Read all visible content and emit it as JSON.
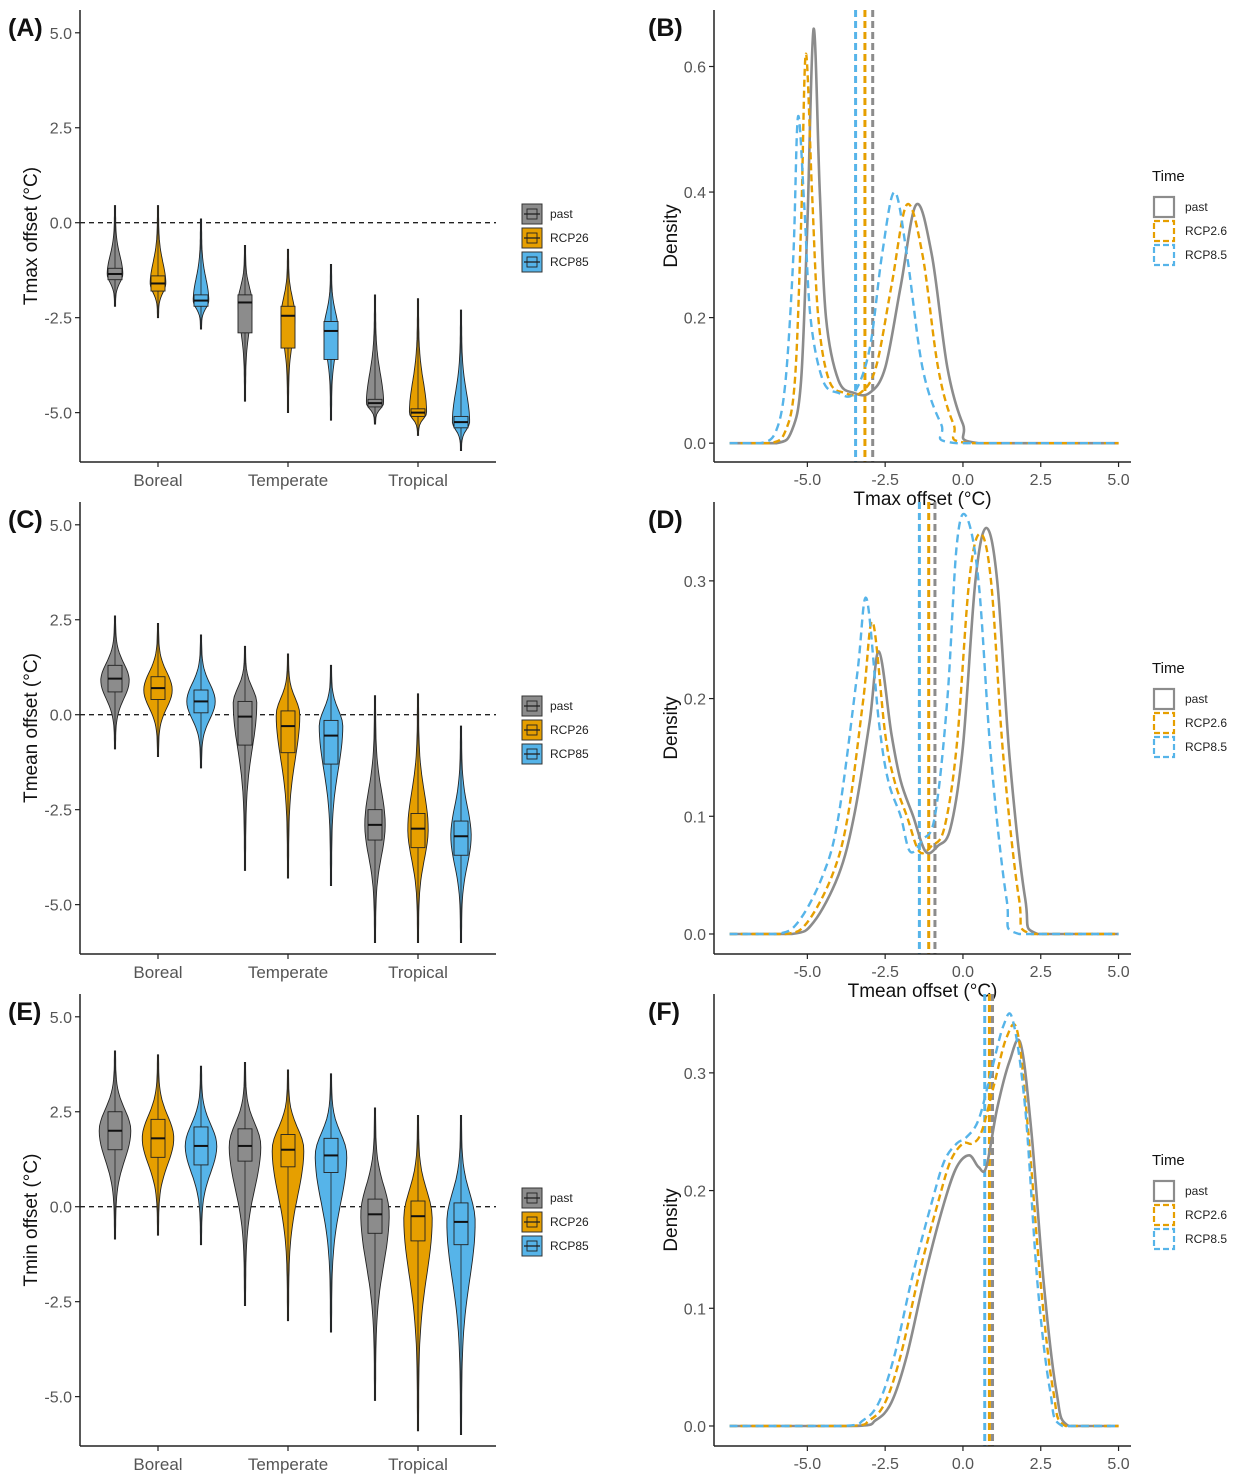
{
  "colors": {
    "past": "#8c8c8c",
    "rcp26": "#e69f00",
    "rcp85": "#56b4e9",
    "axis": "#222222"
  },
  "chart_data": [
    {
      "panel": "(A)",
      "type": "violin",
      "ylabel": "Tmax offset (°C)",
      "categories": [
        "Boreal",
        "Temperate",
        "Tropical"
      ],
      "ylim": [
        -6.3,
        5.6
      ],
      "yticks": [
        -5.0,
        -2.5,
        0.0,
        2.5,
        5.0
      ],
      "yticklabels": [
        "-5.0",
        "-2.5",
        "0.0",
        "2.5",
        "5.0"
      ],
      "reference_line": 0,
      "legend": [
        "past",
        "RCP26",
        "RCP85"
      ],
      "series": [
        {
          "category": "Boreal",
          "group": "past",
          "median": -1.35,
          "q1": -1.5,
          "q3": -1.2,
          "min": -2.2,
          "max": 0.45,
          "width": 0.45,
          "bulge": -1.35
        },
        {
          "category": "Boreal",
          "group": "RCP26",
          "median": -1.6,
          "q1": -1.8,
          "q3": -1.4,
          "min": -2.5,
          "max": 0.45,
          "width": 0.45,
          "bulge": -1.6
        },
        {
          "category": "Boreal",
          "group": "RCP85",
          "median": -2.05,
          "q1": -2.2,
          "q3": -1.9,
          "min": -2.8,
          "max": 0.1,
          "width": 0.45,
          "bulge": -2.05
        },
        {
          "category": "Temperate",
          "group": "past",
          "median": -2.1,
          "q1": -2.9,
          "q3": -1.9,
          "min": -4.7,
          "max": -0.6,
          "width": 0.4,
          "bulge": -2.1
        },
        {
          "category": "Temperate",
          "group": "RCP26",
          "median": -2.45,
          "q1": -3.3,
          "q3": -2.2,
          "min": -5.0,
          "max": -0.7,
          "width": 0.4,
          "bulge": -2.45
        },
        {
          "category": "Temperate",
          "group": "RCP85",
          "median": -2.85,
          "q1": -3.6,
          "q3": -2.6,
          "min": -5.2,
          "max": -1.1,
          "width": 0.4,
          "bulge": -2.8
        },
        {
          "category": "Tropical",
          "group": "past",
          "median": -4.75,
          "q1": -4.85,
          "q3": -4.65,
          "min": -5.3,
          "max": -1.9,
          "width": 0.5,
          "bulge": -4.75
        },
        {
          "category": "Tropical",
          "group": "RCP26",
          "median": -5.0,
          "q1": -5.1,
          "q3": -4.9,
          "min": -5.6,
          "max": -2.0,
          "width": 0.5,
          "bulge": -5.0
        },
        {
          "category": "Tropical",
          "group": "RCP85",
          "median": -5.25,
          "q1": -5.4,
          "q3": -5.1,
          "min": -6.0,
          "max": -2.3,
          "width": 0.5,
          "bulge": -5.25
        }
      ]
    },
    {
      "panel": "(B)",
      "type": "line",
      "xlabel": "Tmax offset (°C)",
      "ylabel": "Density",
      "xlim": [
        -8.0,
        5.4
      ],
      "ylim": [
        -0.03,
        0.69
      ],
      "xticks": [
        -5.0,
        -2.5,
        0.0,
        2.5,
        5.0
      ],
      "xticklabels": [
        "-5.0",
        "-2.5",
        "0.0",
        "2.5",
        "5.0"
      ],
      "yticks": [
        0.0,
        0.2,
        0.4,
        0.6
      ],
      "yticklabels": [
        "0.0",
        "0.2",
        "0.4",
        "0.6"
      ],
      "legend_title": "Time",
      "legend": [
        "past",
        "RCP2.6",
        "RCP8.5"
      ],
      "series": [
        {
          "name": "past",
          "x": [
            -7.5,
            -6.0,
            -5.5,
            -5.2,
            -5.0,
            -4.8,
            -4.6,
            -4.4,
            -4.0,
            -3.5,
            -3.0,
            -2.5,
            -2.0,
            -1.5,
            -1.0,
            -0.5,
            0.0,
            0.5,
            5.0
          ],
          "y": [
            0,
            0,
            0.02,
            0.1,
            0.35,
            0.66,
            0.4,
            0.2,
            0.1,
            0.08,
            0.08,
            0.12,
            0.25,
            0.38,
            0.3,
            0.12,
            0.03,
            0.0,
            0
          ],
          "mean": -2.9
        },
        {
          "name": "RCP2.6",
          "x": [
            -7.5,
            -6.2,
            -5.7,
            -5.4,
            -5.2,
            -5.05,
            -4.85,
            -4.65,
            -4.3,
            -3.8,
            -3.3,
            -2.8,
            -2.3,
            -1.8,
            -1.3,
            -0.8,
            -0.3,
            0.2,
            5.0
          ],
          "y": [
            0,
            0,
            0.02,
            0.1,
            0.35,
            0.62,
            0.4,
            0.2,
            0.1,
            0.08,
            0.08,
            0.12,
            0.25,
            0.38,
            0.3,
            0.12,
            0.03,
            0.0,
            0
          ],
          "mean": -3.15
        },
        {
          "name": "RCP8.5",
          "x": [
            -7.5,
            -6.5,
            -6.0,
            -5.7,
            -5.45,
            -5.3,
            -5.1,
            -4.9,
            -4.5,
            -4.0,
            -3.5,
            -3.0,
            -2.6,
            -2.2,
            -1.8,
            -1.3,
            -0.7,
            -0.2,
            5.0
          ],
          "y": [
            0,
            0,
            0.02,
            0.1,
            0.3,
            0.52,
            0.38,
            0.2,
            0.1,
            0.08,
            0.08,
            0.15,
            0.3,
            0.4,
            0.3,
            0.12,
            0.03,
            0.0,
            0
          ],
          "mean": -3.45
        }
      ]
    },
    {
      "panel": "(C)",
      "type": "violin",
      "ylabel": "Tmean offset (°C)",
      "categories": [
        "Boreal",
        "Temperate",
        "Tropical"
      ],
      "ylim": [
        -6.3,
        5.6
      ],
      "yticks": [
        -5.0,
        -2.5,
        0.0,
        2.5,
        5.0
      ],
      "yticklabels": [
        "-5.0",
        "-2.5",
        "0.0",
        "2.5",
        "5.0"
      ],
      "reference_line": 0,
      "legend": [
        "past",
        "RCP26",
        "RCP85"
      ],
      "series": [
        {
          "category": "Boreal",
          "group": "past",
          "median": 0.95,
          "q1": 0.6,
          "q3": 1.3,
          "min": -0.9,
          "max": 2.6,
          "width": 0.85,
          "bulge": 0.9
        },
        {
          "category": "Boreal",
          "group": "RCP26",
          "median": 0.7,
          "q1": 0.4,
          "q3": 1.0,
          "min": -1.1,
          "max": 2.4,
          "width": 0.85,
          "bulge": 0.65
        },
        {
          "category": "Boreal",
          "group": "RCP85",
          "median": 0.35,
          "q1": 0.05,
          "q3": 0.65,
          "min": -1.4,
          "max": 2.1,
          "width": 0.85,
          "bulge": 0.35
        },
        {
          "category": "Temperate",
          "group": "past",
          "median": -0.05,
          "q1": -0.8,
          "q3": 0.35,
          "min": -4.1,
          "max": 1.8,
          "width": 0.7,
          "bulge": 0.3
        },
        {
          "category": "Temperate",
          "group": "RCP26",
          "median": -0.3,
          "q1": -1.0,
          "q3": 0.1,
          "min": -4.3,
          "max": 1.6,
          "width": 0.7,
          "bulge": 0.0
        },
        {
          "category": "Temperate",
          "group": "RCP85",
          "median": -0.55,
          "q1": -1.3,
          "q3": -0.15,
          "min": -4.5,
          "max": 1.3,
          "width": 0.7,
          "bulge": -0.3
        },
        {
          "category": "Tropical",
          "group": "past",
          "median": -2.9,
          "q1": -3.3,
          "q3": -2.5,
          "min": -6.0,
          "max": 0.5,
          "width": 0.6,
          "bulge": -2.9
        },
        {
          "category": "Tropical",
          "group": "RCP26",
          "median": -3.0,
          "q1": -3.5,
          "q3": -2.6,
          "min": -6.0,
          "max": 0.55,
          "width": 0.6,
          "bulge": -3.0
        },
        {
          "category": "Tropical",
          "group": "RCP85",
          "median": -3.2,
          "q1": -3.7,
          "q3": -2.8,
          "min": -6.0,
          "max": -0.3,
          "width": 0.6,
          "bulge": -3.2
        }
      ]
    },
    {
      "panel": "(D)",
      "type": "line",
      "xlabel": "Tmean offset (°C)",
      "ylabel": "Density",
      "xlim": [
        -8.0,
        5.4
      ],
      "ylim": [
        -0.017,
        0.367
      ],
      "xticks": [
        -5.0,
        -2.5,
        0.0,
        2.5,
        5.0
      ],
      "xticklabels": [
        "-5.0",
        "-2.5",
        "0.0",
        "2.5",
        "5.0"
      ],
      "yticks": [
        0.0,
        0.1,
        0.2,
        0.3
      ],
      "yticklabels": [
        "0.0",
        "0.1",
        "0.2",
        "0.3"
      ],
      "legend_title": "Time",
      "legend": [
        "past",
        "RCP2.6",
        "RCP8.5"
      ],
      "series": [
        {
          "name": "past",
          "x": [
            -7.5,
            -5.5,
            -4.8,
            -4.0,
            -3.5,
            -3.0,
            -2.7,
            -2.3,
            -2.0,
            -1.6,
            -1.2,
            -0.8,
            -0.4,
            0.0,
            0.4,
            0.75,
            1.1,
            1.5,
            2.0,
            2.4,
            5.0
          ],
          "y": [
            0,
            0,
            0.01,
            0.05,
            0.1,
            0.18,
            0.24,
            0.17,
            0.13,
            0.1,
            0.07,
            0.075,
            0.09,
            0.16,
            0.3,
            0.345,
            0.3,
            0.15,
            0.03,
            0.0,
            0
          ],
          "mean": -0.9
        },
        {
          "name": "RCP2.6",
          "x": [
            -7.5,
            -5.7,
            -5.0,
            -4.2,
            -3.7,
            -3.2,
            -2.9,
            -2.5,
            -2.2,
            -1.8,
            -1.4,
            -1.0,
            -0.6,
            -0.2,
            0.2,
            0.55,
            0.9,
            1.3,
            1.8,
            2.2,
            5.0
          ],
          "y": [
            0,
            0,
            0.01,
            0.05,
            0.1,
            0.2,
            0.265,
            0.17,
            0.13,
            0.1,
            0.07,
            0.075,
            0.09,
            0.16,
            0.3,
            0.34,
            0.3,
            0.15,
            0.03,
            0.0,
            0
          ],
          "mean": -1.1
        },
        {
          "name": "RCP8.5",
          "x": [
            -7.5,
            -6.0,
            -5.3,
            -4.5,
            -4.0,
            -3.4,
            -3.1,
            -2.7,
            -2.4,
            -2.0,
            -1.7,
            -1.3,
            -0.9,
            -0.5,
            -0.2,
            0.1,
            0.5,
            0.9,
            1.4,
            1.8,
            5.0
          ],
          "y": [
            0,
            0,
            0.01,
            0.05,
            0.1,
            0.22,
            0.285,
            0.18,
            0.13,
            0.1,
            0.07,
            0.08,
            0.1,
            0.2,
            0.33,
            0.355,
            0.3,
            0.15,
            0.03,
            0.0,
            0
          ],
          "mean": -1.4
        }
      ]
    },
    {
      "panel": "(E)",
      "type": "violin",
      "ylabel": "Tmin offset (°C)",
      "categories": [
        "Boreal",
        "Temperate",
        "Tropical"
      ],
      "ylim": [
        -6.3,
        5.6
      ],
      "yticks": [
        -5.0,
        -2.5,
        0.0,
        2.5,
        5.0
      ],
      "yticklabels": [
        "-5.0",
        "-2.5",
        "0.0",
        "2.5",
        "5.0"
      ],
      "reference_line": 0,
      "legend": [
        "past",
        "RCP26",
        "RCP85"
      ],
      "series": [
        {
          "category": "Boreal",
          "group": "past",
          "median": 2.0,
          "q1": 1.5,
          "q3": 2.5,
          "min": -0.85,
          "max": 4.1,
          "width": 0.95,
          "bulge": 2.0
        },
        {
          "category": "Boreal",
          "group": "RCP26",
          "median": 1.8,
          "q1": 1.3,
          "q3": 2.3,
          "min": -0.75,
          "max": 4.0,
          "width": 0.95,
          "bulge": 1.8
        },
        {
          "category": "Boreal",
          "group": "RCP85",
          "median": 1.6,
          "q1": 1.1,
          "q3": 2.1,
          "min": -1.0,
          "max": 3.7,
          "width": 0.95,
          "bulge": 1.6
        },
        {
          "category": "Temperate",
          "group": "past",
          "median": 1.6,
          "q1": 1.2,
          "q3": 2.05,
          "min": -2.6,
          "max": 3.8,
          "width": 0.95,
          "bulge": 1.6
        },
        {
          "category": "Temperate",
          "group": "RCP26",
          "median": 1.5,
          "q1": 1.05,
          "q3": 1.9,
          "min": -3.0,
          "max": 3.6,
          "width": 0.95,
          "bulge": 1.5
        },
        {
          "category": "Temperate",
          "group": "RCP85",
          "median": 1.35,
          "q1": 0.9,
          "q3": 1.8,
          "min": -3.3,
          "max": 3.5,
          "width": 0.95,
          "bulge": 1.35
        },
        {
          "category": "Tropical",
          "group": "past",
          "median": -0.2,
          "q1": -0.7,
          "q3": 0.2,
          "min": -5.1,
          "max": 2.6,
          "width": 0.85,
          "bulge": -0.2
        },
        {
          "category": "Tropical",
          "group": "RCP26",
          "median": -0.25,
          "q1": -0.9,
          "q3": 0.15,
          "min": -5.9,
          "max": 2.4,
          "width": 0.85,
          "bulge": -0.3
        },
        {
          "category": "Tropical",
          "group": "RCP85",
          "median": -0.4,
          "q1": -1.0,
          "q3": 0.1,
          "min": -6.0,
          "max": 2.4,
          "width": 0.85,
          "bulge": -0.4
        }
      ]
    },
    {
      "panel": "(F)",
      "type": "line",
      "xlabel": "Tmin offset (°C)",
      "ylabel": "Density",
      "xlim": [
        -8.0,
        5.4
      ],
      "ylim": [
        -0.017,
        0.367
      ],
      "xticks": [
        -5.0,
        -2.5,
        0.0,
        2.5,
        5.0
      ],
      "xticklabels": [
        "-5.0",
        "-2.5",
        "0.0",
        "2.5",
        "5.0"
      ],
      "yticks": [
        0.0,
        0.1,
        0.2,
        0.3
      ],
      "yticklabels": [
        "0.0",
        "0.1",
        "0.2",
        "0.3"
      ],
      "legend_title": "Time",
      "legend": [
        "past",
        "RCP2.6",
        "RCP8.5"
      ],
      "series": [
        {
          "name": "past",
          "x": [
            -7.5,
            -3.5,
            -2.8,
            -2.3,
            -1.8,
            -1.2,
            -0.6,
            -0.2,
            0.2,
            0.5,
            0.75,
            1.1,
            1.5,
            1.85,
            2.2,
            2.6,
            3.0,
            3.4,
            5.0
          ],
          "y": [
            0,
            0,
            0.005,
            0.02,
            0.06,
            0.13,
            0.19,
            0.22,
            0.23,
            0.22,
            0.22,
            0.27,
            0.31,
            0.325,
            0.25,
            0.12,
            0.03,
            0.0,
            0
          ],
          "mean": 0.95
        },
        {
          "name": "RCP2.6",
          "x": [
            -7.5,
            -3.7,
            -3.0,
            -2.5,
            -2.0,
            -1.4,
            -0.8,
            -0.4,
            0.0,
            0.3,
            0.6,
            1.0,
            1.4,
            1.75,
            2.1,
            2.5,
            2.9,
            3.3,
            5.0
          ],
          "y": [
            0,
            0,
            0.005,
            0.02,
            0.06,
            0.13,
            0.19,
            0.225,
            0.24,
            0.24,
            0.25,
            0.29,
            0.33,
            0.335,
            0.25,
            0.12,
            0.03,
            0.0,
            0
          ],
          "mean": 0.85
        },
        {
          "name": "RCP8.5",
          "x": [
            -7.5,
            -3.9,
            -3.2,
            -2.7,
            -2.2,
            -1.6,
            -1.0,
            -0.6,
            -0.2,
            0.1,
            0.5,
            0.9,
            1.3,
            1.6,
            2.0,
            2.4,
            2.8,
            3.2,
            5.0
          ],
          "y": [
            0,
            0,
            0.005,
            0.02,
            0.06,
            0.13,
            0.19,
            0.225,
            0.24,
            0.245,
            0.26,
            0.3,
            0.34,
            0.345,
            0.27,
            0.12,
            0.03,
            0.0,
            0
          ],
          "mean": 0.7
        }
      ]
    }
  ]
}
